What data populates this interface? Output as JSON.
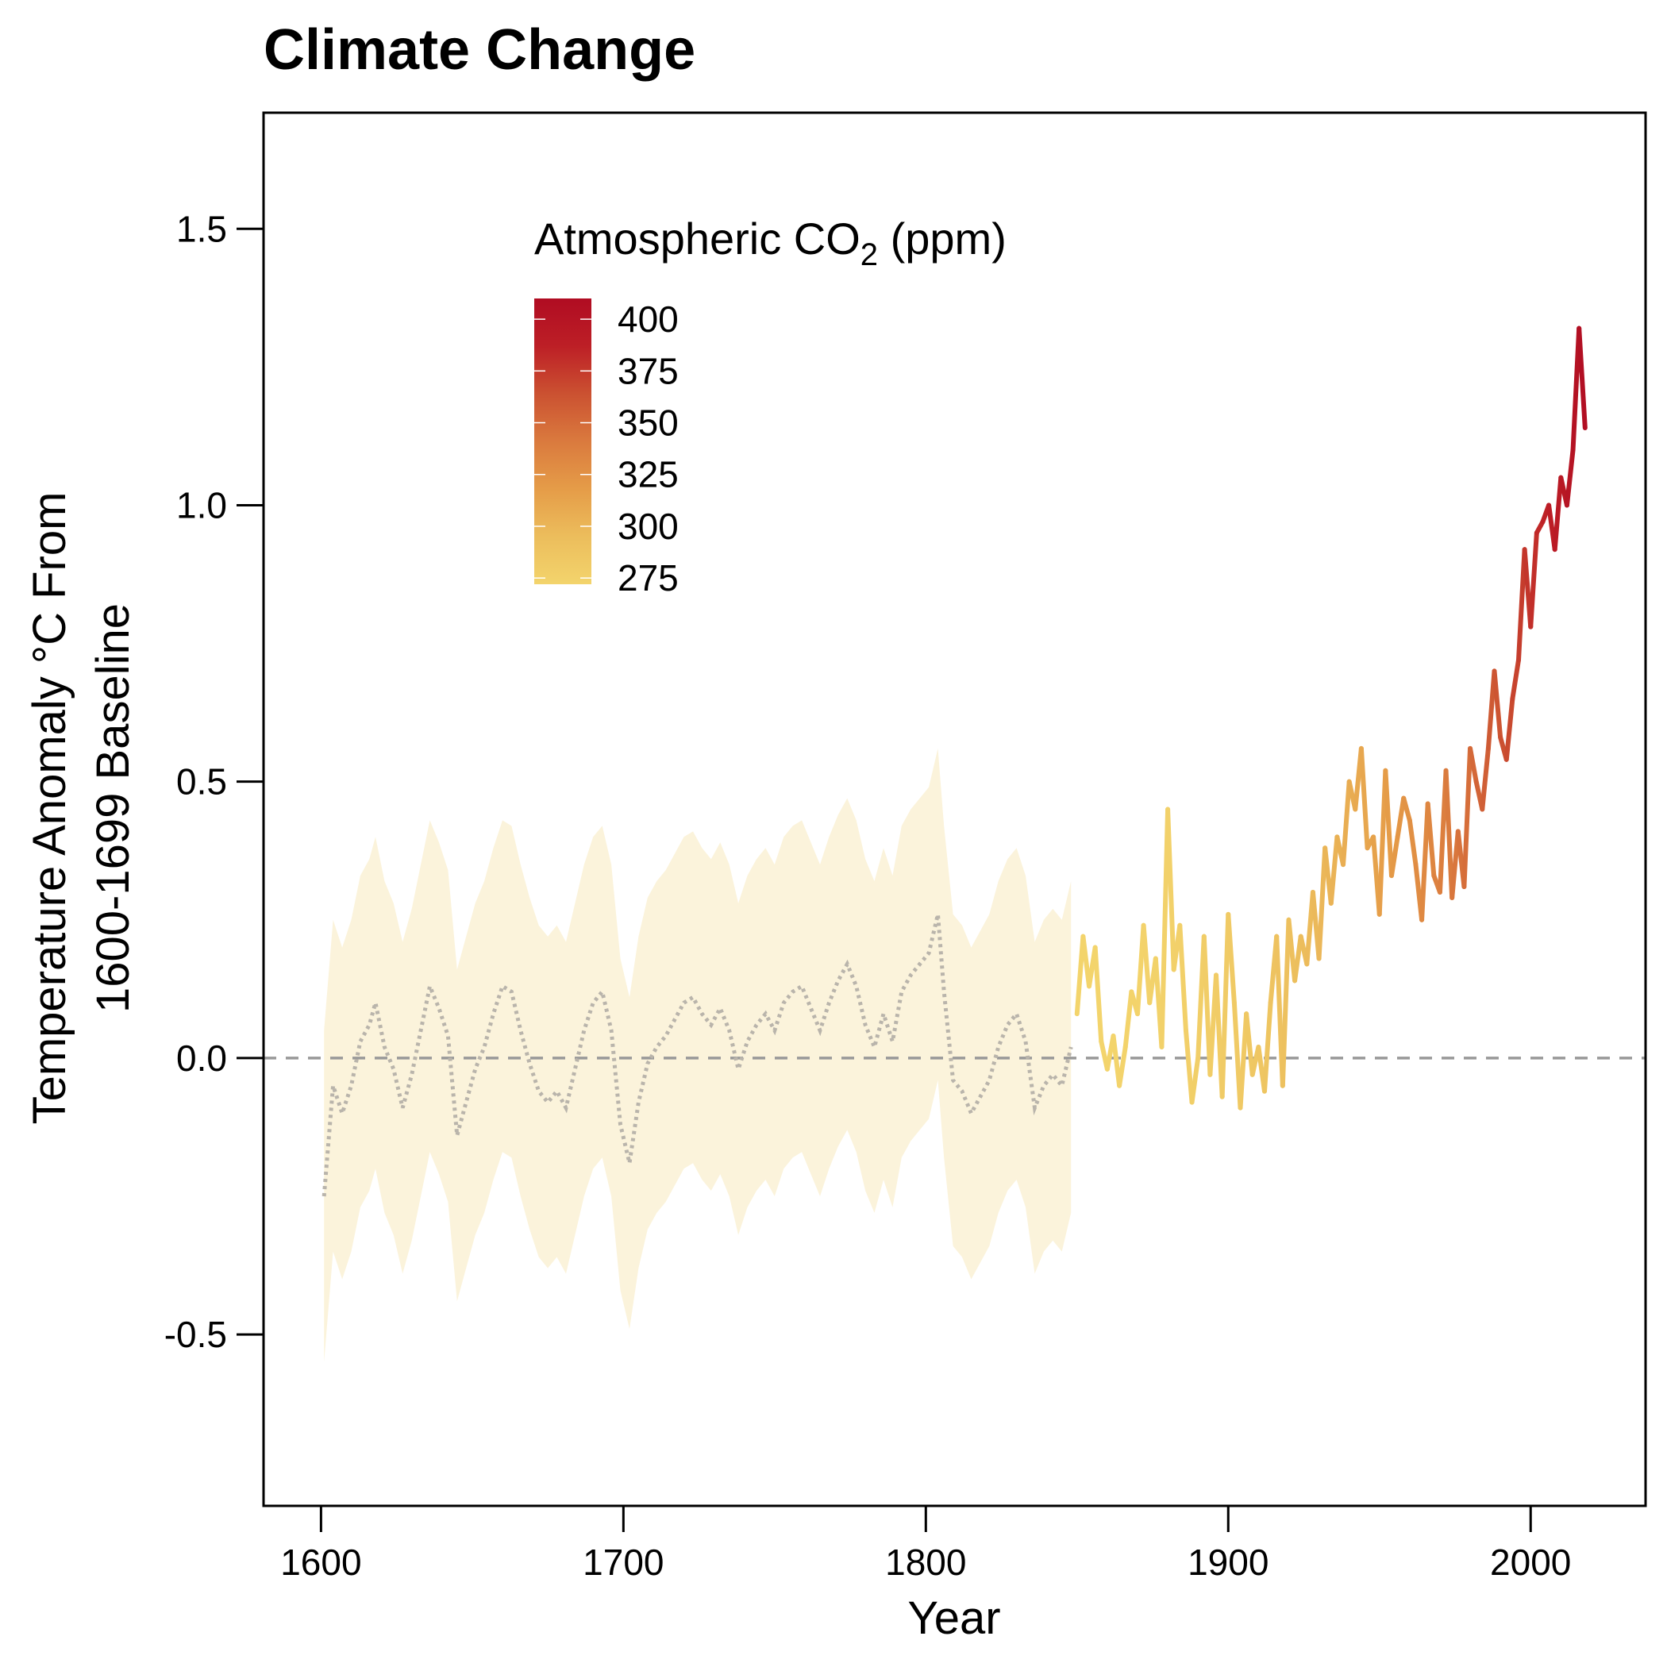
{
  "chart_data": {
    "type": "line",
    "title": "Climate Change",
    "xlabel": "Year",
    "ylabel_line1": "Temperature Anomaly °C From",
    "ylabel_line2": "1600-1699 Baseline",
    "xlim": [
      1581,
      2038
    ],
    "ylim": [
      -0.81,
      1.71
    ],
    "x_ticks": [
      1600,
      1700,
      1800,
      1900,
      2000
    ],
    "y_ticks": [
      -0.5,
      0.0,
      0.5,
      1.0,
      1.5
    ],
    "y_tick_labels": [
      "-0.5",
      "0.0",
      "0.5",
      "1.0",
      "1.5"
    ],
    "reference_line": {
      "y": 0,
      "style": "dashed",
      "color": "#999999"
    },
    "legend": {
      "title": "Atmospheric CO",
      "title_subscript": "2",
      "title_suffix": " (ppm)",
      "placement": "top-left",
      "breaks": [
        400,
        375,
        350,
        325,
        300,
        275
      ],
      "range": [
        272,
        410
      ],
      "colors": [
        "#F3D46C",
        "#ECBD5C",
        "#E59C48",
        "#DA7A3E",
        "#CB5131",
        "#BD1F26",
        "#B00C22"
      ]
    },
    "series": [
      {
        "kind": "reconstruction",
        "style": "dotted",
        "color": "#B9B4AB",
        "band_color": "#FBF3DB",
        "band_halfwidth": 0.3,
        "x": [
          1601,
          1604,
          1607,
          1610,
          1613,
          1616,
          1618,
          1621,
          1624,
          1627,
          1630,
          1633,
          1636,
          1639,
          1642,
          1645,
          1648,
          1651,
          1654,
          1657,
          1660,
          1663,
          1666,
          1669,
          1672,
          1675,
          1678,
          1681,
          1684,
          1687,
          1690,
          1693,
          1696,
          1699,
          1702,
          1705,
          1708,
          1711,
          1714,
          1717,
          1720,
          1723,
          1726,
          1729,
          1732,
          1735,
          1738,
          1741,
          1744,
          1747,
          1750,
          1753,
          1756,
          1759,
          1762,
          1765,
          1768,
          1771,
          1774,
          1777,
          1780,
          1783,
          1786,
          1789,
          1792,
          1795,
          1798,
          1801,
          1804,
          1806,
          1809,
          1812,
          1815,
          1818,
          1821,
          1824,
          1827,
          1830,
          1833,
          1836,
          1839,
          1842,
          1845,
          1848
        ],
        "y": [
          -0.25,
          -0.05,
          -0.1,
          -0.05,
          0.03,
          0.06,
          0.1,
          0.02,
          -0.02,
          -0.09,
          -0.03,
          0.05,
          0.13,
          0.09,
          0.04,
          -0.14,
          -0.08,
          -0.02,
          0.02,
          0.08,
          0.13,
          0.12,
          0.05,
          -0.01,
          -0.06,
          -0.08,
          -0.06,
          -0.09,
          -0.02,
          0.05,
          0.1,
          0.12,
          0.05,
          -0.12,
          -0.19,
          -0.08,
          -0.01,
          0.02,
          0.04,
          0.07,
          0.1,
          0.11,
          0.08,
          0.06,
          0.09,
          0.05,
          -0.02,
          0.03,
          0.06,
          0.08,
          0.05,
          0.1,
          0.12,
          0.13,
          0.09,
          0.05,
          0.1,
          0.14,
          0.17,
          0.13,
          0.06,
          0.02,
          0.08,
          0.03,
          0.12,
          0.15,
          0.17,
          0.19,
          0.26,
          0.12,
          -0.04,
          -0.06,
          -0.1,
          -0.07,
          -0.04,
          0.02,
          0.06,
          0.08,
          0.03,
          -0.09,
          -0.05,
          -0.03,
          -0.05,
          0.02
        ]
      },
      {
        "kind": "instrumental",
        "style": "solid",
        "x": [
          1850,
          1852,
          1854,
          1856,
          1858,
          1860,
          1862,
          1864,
          1866,
          1868,
          1870,
          1872,
          1874,
          1876,
          1878,
          1880,
          1882,
          1884,
          1886,
          1888,
          1890,
          1892,
          1894,
          1896,
          1898,
          1900,
          1902,
          1904,
          1906,
          1908,
          1910,
          1912,
          1914,
          1916,
          1918,
          1920,
          1922,
          1924,
          1926,
          1928,
          1930,
          1932,
          1934,
          1936,
          1938,
          1940,
          1942,
          1944,
          1946,
          1948,
          1950,
          1952,
          1954,
          1956,
          1958,
          1960,
          1962,
          1964,
          1966,
          1968,
          1970,
          1972,
          1974,
          1976,
          1978,
          1980,
          1982,
          1984,
          1986,
          1988,
          1990,
          1992,
          1994,
          1996,
          1998,
          2000,
          2002,
          2004,
          2006,
          2008,
          2010,
          2012,
          2014,
          2016,
          2018
        ],
        "y": [
          0.08,
          0.22,
          0.13,
          0.2,
          0.03,
          -0.02,
          0.04,
          -0.05,
          0.02,
          0.12,
          0.08,
          0.24,
          0.1,
          0.18,
          0.02,
          0.45,
          0.16,
          0.24,
          0.05,
          -0.08,
          0.0,
          0.22,
          -0.03,
          0.15,
          -0.07,
          0.26,
          0.1,
          -0.09,
          0.08,
          -0.03,
          0.02,
          -0.06,
          0.1,
          0.22,
          -0.05,
          0.25,
          0.14,
          0.22,
          0.17,
          0.3,
          0.18,
          0.38,
          0.28,
          0.4,
          0.35,
          0.5,
          0.45,
          0.56,
          0.38,
          0.4,
          0.26,
          0.52,
          0.33,
          0.4,
          0.47,
          0.43,
          0.35,
          0.25,
          0.46,
          0.33,
          0.3,
          0.52,
          0.29,
          0.41,
          0.31,
          0.56,
          0.5,
          0.45,
          0.56,
          0.7,
          0.58,
          0.54,
          0.65,
          0.72,
          0.92,
          0.78,
          0.95,
          0.97,
          1.0,
          0.92,
          1.05,
          1.0,
          1.1,
          1.32,
          1.14
        ]
      }
    ]
  }
}
